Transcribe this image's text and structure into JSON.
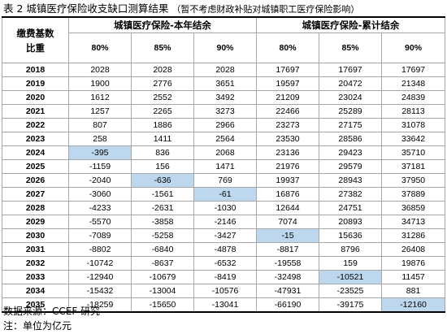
{
  "caption": {
    "title": "表 2  城镇医疗保险收支缺口测算结果",
    "note": "（暂不考虑财政补贴对城镇职工医疗保险影响）"
  },
  "header": {
    "corner_line1": "缴费基数",
    "corner_line2": "比重",
    "group_annual": "城镇医疗保险-本年结余",
    "group_cumulative": "城镇医疗保险-累计结余",
    "pct": [
      "80%",
      "85%",
      "90%",
      "80%",
      "85%",
      "90%"
    ]
  },
  "rows": [
    {
      "year": "2018",
      "values": [
        "2028",
        "2028",
        "2028",
        "17697",
        "17697",
        "17697"
      ],
      "highlight": []
    },
    {
      "year": "2019",
      "values": [
        "1900",
        "2776",
        "3651",
        "19597",
        "20472",
        "21348"
      ],
      "highlight": []
    },
    {
      "year": "2020",
      "values": [
        "1612",
        "2552",
        "3492",
        "21209",
        "23024",
        "24839"
      ],
      "highlight": []
    },
    {
      "year": "2021",
      "values": [
        "1257",
        "2265",
        "3273",
        "22466",
        "25289",
        "28113"
      ],
      "highlight": []
    },
    {
      "year": "2022",
      "values": [
        "807",
        "1886",
        "2966",
        "23273",
        "27175",
        "31078"
      ],
      "highlight": []
    },
    {
      "year": "2023",
      "values": [
        "258",
        "1411",
        "2564",
        "23530",
        "28586",
        "33642"
      ],
      "highlight": []
    },
    {
      "year": "2024",
      "values": [
        "-395",
        "836",
        "2068",
        "23136",
        "29423",
        "35710"
      ],
      "highlight": [
        0
      ]
    },
    {
      "year": "2025",
      "values": [
        "-1159",
        "156",
        "1471",
        "21976",
        "29579",
        "37181"
      ],
      "highlight": []
    },
    {
      "year": "2026",
      "values": [
        "-2040",
        "-636",
        "769",
        "19937",
        "28943",
        "37950"
      ],
      "highlight": [
        1
      ]
    },
    {
      "year": "2027",
      "values": [
        "-3060",
        "-1561",
        "-61",
        "16876",
        "27382",
        "37889"
      ],
      "highlight": [
        2
      ]
    },
    {
      "year": "2028",
      "values": [
        "-4233",
        "-2631",
        "-1030",
        "12644",
        "24751",
        "36859"
      ],
      "highlight": []
    },
    {
      "year": "2029",
      "values": [
        "-5570",
        "-3858",
        "-2146",
        "7074",
        "20893",
        "34713"
      ],
      "highlight": []
    },
    {
      "year": "2030",
      "values": [
        "-7089",
        "-5258",
        "-3427",
        "-15",
        "15636",
        "31286"
      ],
      "highlight": [
        3
      ]
    },
    {
      "year": "2031",
      "values": [
        "-8802",
        "-6840",
        "-4878",
        "-8817",
        "8796",
        "26408"
      ],
      "highlight": []
    },
    {
      "year": "2032",
      "values": [
        "-10742",
        "-8637",
        "-6532",
        "-19558",
        "159",
        "19876"
      ],
      "highlight": []
    },
    {
      "year": "2033",
      "values": [
        "-12940",
        "-10679",
        "-8419",
        "-32498",
        "-10521",
        "11457"
      ],
      "highlight": [
        4
      ]
    },
    {
      "year": "2034",
      "values": [
        "-15432",
        "-13004",
        "-10576",
        "-47931",
        "-23525",
        "881"
      ],
      "highlight": []
    },
    {
      "year": "2035",
      "values": [
        "-18259",
        "-15650",
        "-13041",
        "-66190",
        "-39175",
        "-12160"
      ],
      "highlight": [
        5
      ]
    }
  ],
  "footer": {
    "source": "数据来源：CCEF 研究",
    "unit_note": "注：单位为亿元"
  },
  "colors": {
    "highlight": "#bdd7ee",
    "grid": "#a6a6a6"
  }
}
